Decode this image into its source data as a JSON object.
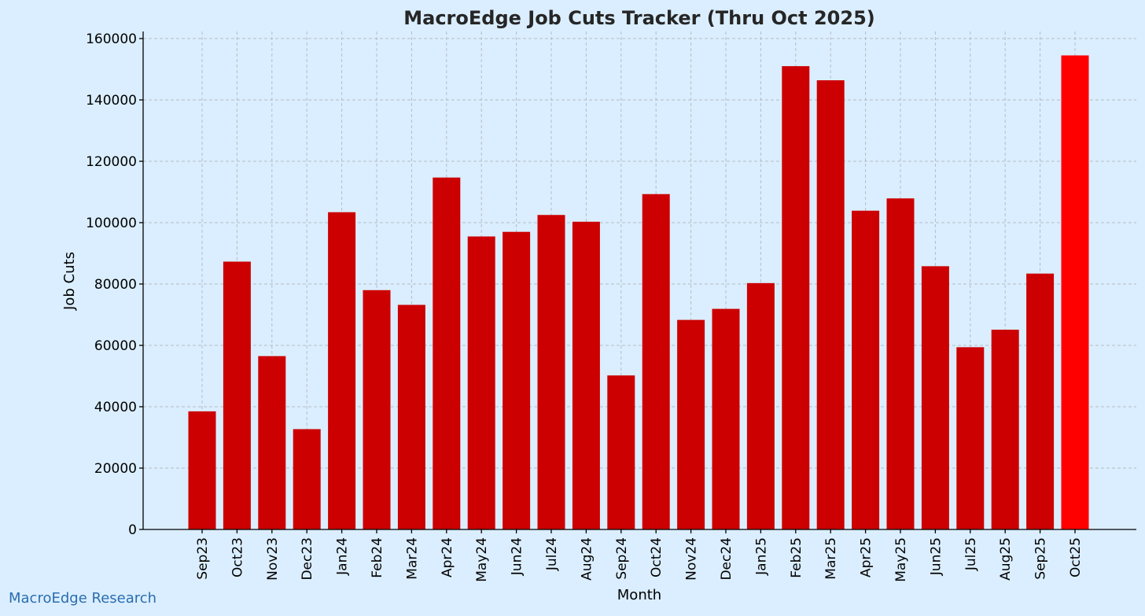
{
  "chart_data": {
    "type": "bar",
    "title": "MacroEdge Job Cuts Tracker (Thru Oct 2025)",
    "xlabel": "Month",
    "ylabel": "Job Cuts",
    "ylim": [
      0,
      160000
    ],
    "yticks": [
      0,
      20000,
      40000,
      60000,
      80000,
      100000,
      120000,
      140000,
      160000
    ],
    "grid": true,
    "categories": [
      "Sep23",
      "Oct23",
      "Nov23",
      "Dec23",
      "Jan24",
      "Feb24",
      "Mar24",
      "Apr24",
      "May24",
      "Jun24",
      "Jul24",
      "Aug24",
      "Sep24",
      "Oct24",
      "Nov24",
      "Dec24",
      "Jan25",
      "Feb25",
      "Mar25",
      "Apr25",
      "May25",
      "Jun25",
      "Jul25",
      "Aug25",
      "Sep25",
      "Oct25"
    ],
    "values": [
      38500,
      87300,
      56500,
      32700,
      103400,
      78000,
      73200,
      114700,
      95500,
      97000,
      102500,
      100300,
      50200,
      109300,
      68300,
      71900,
      80300,
      151000,
      146400,
      103900,
      107900,
      85800,
      59400,
      65100,
      83400,
      154500
    ],
    "bar_color": "#cc0000",
    "highlight_color": "#ff0000",
    "highlight_index": 25
  },
  "watermark": "MacroEdge Research"
}
